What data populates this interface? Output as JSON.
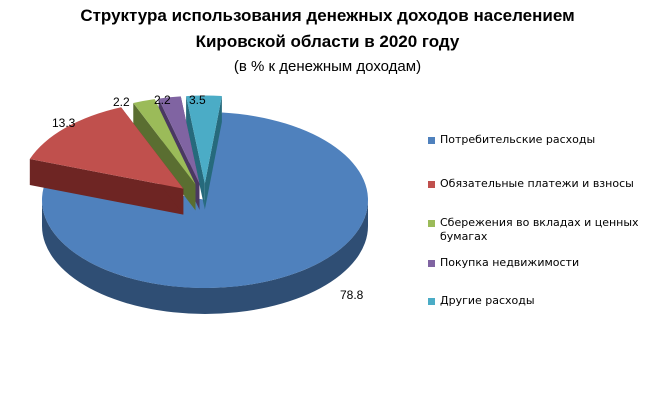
{
  "title_line1": "Структура использования денежных доходов населением",
  "title_line2": "Кировской области в 2020 году",
  "subtitle": "(в % к денежным доходам)",
  "chart_data": {
    "type": "pie",
    "style": "3d-exploded",
    "legend_position": "right",
    "slices": [
      {
        "label": "Потребительские расходы",
        "value": 78.8,
        "value_label": "78.8",
        "color": "#4f81bd",
        "side_color": "#2f4e74",
        "exploded": false
      },
      {
        "label": "Обязательные платежи и взносы",
        "value": 13.3,
        "value_label": "13.3",
        "color": "#c0504d",
        "side_color": "#6e2523",
        "exploded": true
      },
      {
        "label": "Сбережения во вкладах и ценных бумагах",
        "value": 2.2,
        "value_label": "2.2",
        "color": "#9bbb59",
        "side_color": "#5a6e31",
        "exploded": true
      },
      {
        "label": "Покупка недвижимости",
        "value": 2.2,
        "value_label": "2.2",
        "color": "#8064a2",
        "side_color": "#4a3862",
        "exploded": true
      },
      {
        "label": "Другие расходы",
        "value": 3.5,
        "value_label": "3.5",
        "color": "#4bacc6",
        "side_color": "#266a7c",
        "exploded": true
      }
    ]
  }
}
